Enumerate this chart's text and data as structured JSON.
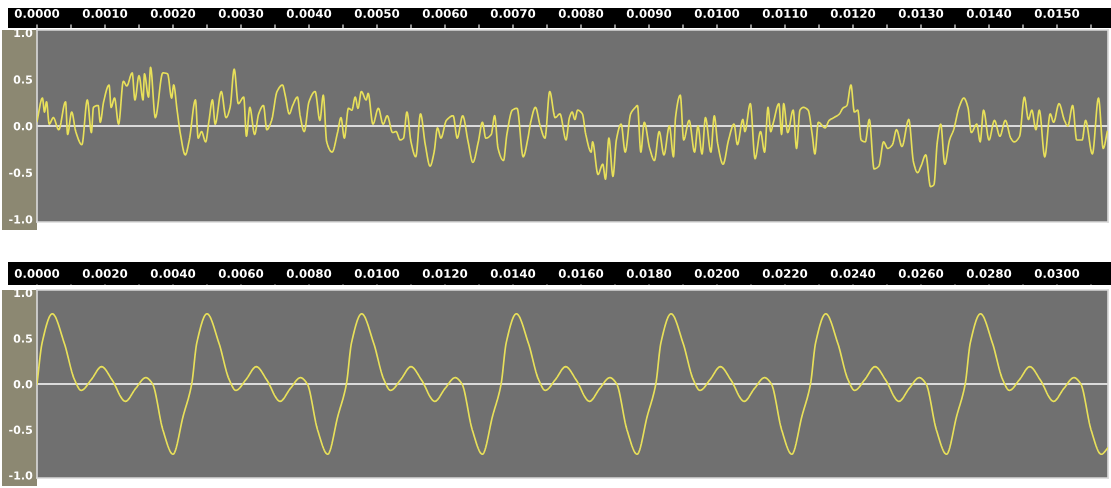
{
  "chart_data": [
    {
      "type": "line",
      "xlim": [
        0,
        0.01575
      ],
      "ylim": [
        -1.03,
        1.03
      ],
      "xticks": [
        {
          "value": 0,
          "label": "0.0000"
        },
        {
          "value": 0.0005,
          "label": null
        },
        {
          "value": 0.001,
          "label": "0.0010"
        },
        {
          "value": 0.0015,
          "label": null
        },
        {
          "value": 0.002,
          "label": "0.0020"
        },
        {
          "value": 0.0025,
          "label": null
        },
        {
          "value": 0.003,
          "label": "0.0030"
        },
        {
          "value": 0.0035,
          "label": null
        },
        {
          "value": 0.004,
          "label": "0.0040"
        },
        {
          "value": 0.0045,
          "label": null
        },
        {
          "value": 0.005,
          "label": "0.0050"
        },
        {
          "value": 0.0055,
          "label": null
        },
        {
          "value": 0.006,
          "label": "0.0060"
        },
        {
          "value": 0.0065,
          "label": null
        },
        {
          "value": 0.007,
          "label": "0.0070"
        },
        {
          "value": 0.0075,
          "label": null
        },
        {
          "value": 0.008,
          "label": "0.0080"
        },
        {
          "value": 0.0085,
          "label": null
        },
        {
          "value": 0.009,
          "label": "0.0090"
        },
        {
          "value": 0.0095,
          "label": null
        },
        {
          "value": 0.01,
          "label": "0.0100"
        },
        {
          "value": 0.0105,
          "label": null
        },
        {
          "value": 0.011,
          "label": "0.0110"
        },
        {
          "value": 0.0115,
          "label": null
        },
        {
          "value": 0.012,
          "label": "0.0120"
        },
        {
          "value": 0.0125,
          "label": null
        },
        {
          "value": 0.013,
          "label": "0.0130"
        },
        {
          "value": 0.0135,
          "label": null
        },
        {
          "value": 0.014,
          "label": "0.0140"
        },
        {
          "value": 0.0145,
          "label": null
        },
        {
          "value": 0.015,
          "label": "0.0150"
        },
        {
          "value": 0.0155,
          "label": null
        }
      ],
      "yticks": [
        {
          "value": 1.0,
          "label": "1.0"
        },
        {
          "value": 0.5,
          "label": "0.5"
        },
        {
          "value": 0,
          "label": "0.0"
        },
        {
          "value": -0.5,
          "label": "-0.5"
        },
        {
          "value": -1.0,
          "label": "-1.0"
        }
      ],
      "ref_lines": [
        {
          "axis": "y",
          "value": 0,
          "color": "#ffffff"
        }
      ],
      "series": [
        {
          "color": "#e8e05a",
          "x": [
            0,
            8e-05,
            0.00011,
            0.00014,
            0.00018,
            0.00024,
            0.00032,
            0.00042,
            0.00045,
            0.00051,
            0.00057,
            0.00066,
            0.00074,
            0.0008,
            0.00083,
            0.0009,
            0.00093,
            0.00098,
            0.00106,
            0.00109,
            0.00114,
            0.0012,
            0.00127,
            0.00132,
            0.0014,
            0.00144,
            0.0015,
            0.00156,
            0.00158,
            0.00164,
            0.00167,
            0.00174,
            0.00185,
            0.00192,
            0.00198,
            0.00201,
            0.00206,
            0.00211,
            0.00218,
            0.00224,
            0.00233,
            0.00237,
            0.00242,
            0.00248,
            0.00253,
            0.00258,
            0.00262,
            0.00271,
            0.00278,
            0.00284,
            0.0029,
            0.00296,
            0.00304,
            0.00308,
            0.00313,
            0.0032,
            0.00326,
            0.00333,
            0.00338,
            0.00345,
            0.00353,
            0.00361,
            0.00365,
            0.00371,
            0.00376,
            0.00383,
            0.00387,
            0.00393,
            0.004,
            0.00409,
            0.00416,
            0.00421,
            0.00426,
            0.00434,
            0.00442,
            0.00447,
            0.00452,
            0.00458,
            0.00463,
            0.00468,
            0.00472,
            0.00477,
            0.00484,
            0.00487,
            0.00494,
            0.00502,
            0.00509,
            0.00515,
            0.00523,
            0.00528,
            0.00534,
            0.00539,
            0.00544,
            0.0055,
            0.00557,
            0.00564,
            0.00571,
            0.00578,
            0.00584,
            0.00589,
            0.00594,
            0.00602,
            0.00612,
            0.00618,
            0.00626,
            0.00634,
            0.00641,
            0.00649,
            0.00655,
            0.0066,
            0.00668,
            0.00673,
            0.00678,
            0.00686,
            0.00691,
            0.00699,
            0.00706,
            0.00715,
            0.00722,
            0.00726,
            0.00733,
            0.0074,
            0.00747,
            0.00754,
            0.00762,
            0.00769,
            0.00778,
            0.00783,
            0.00787,
            0.00791,
            0.00795,
            0.00802,
            0.00807,
            0.00815,
            0.00817,
            0.00825,
            0.00832,
            0.00836,
            0.00841,
            0.00847,
            0.00852,
            0.00859,
            0.00865,
            0.00873,
            0.0088,
            0.00883,
            0.00888,
            0.00893,
            0.00901,
            0.00908,
            0.00915,
            0.00922,
            0.0093,
            0.00936,
            0.00939,
            0.00946,
            0.00951,
            0.00959,
            0.00967,
            0.00972,
            0.00978,
            0.00983,
            0.00991,
            0.00996,
            0.01001,
            0.01009,
            0.01017,
            0.01025,
            0.0103,
            0.01038,
            0.01041,
            0.01049,
            0.01056,
            0.01064,
            0.0107,
            0.01075,
            0.01079,
            0.01083,
            0.01091,
            0.01095,
            0.01098,
            0.01104,
            0.01112,
            0.01117,
            0.01122,
            0.01127,
            0.01134,
            0.0114,
            0.01144,
            0.01149,
            0.01159,
            0.01165,
            0.01172,
            0.0118,
            0.01185,
            0.01191,
            0.01197,
            0.01202,
            0.01207,
            0.01212,
            0.01218,
            0.01224,
            0.01231,
            0.01238,
            0.01245,
            0.01251,
            0.01258,
            0.01264,
            0.01272,
            0.01282,
            0.01289,
            0.01295,
            0.013,
            0.01307,
            0.01314,
            0.01319,
            0.01324,
            0.01329,
            0.01335,
            0.01342,
            0.01348,
            0.01356,
            0.01363,
            0.01369,
            0.01374,
            0.01382,
            0.01387,
            0.01392,
            0.014,
            0.01408,
            0.01416,
            0.01424,
            0.01432,
            0.01437,
            0.01445,
            0.01452,
            0.01458,
            0.01463,
            0.01469,
            0.01474,
            0.01482,
            0.0149,
            0.01495,
            0.01503,
            0.01511,
            0.01516,
            0.01523,
            0.01529,
            0.01537,
            0.01542,
            0.01552,
            0.01561,
            0.01568,
            0.01574
          ],
          "values": [
            0.05,
            0.3,
            0.15,
            0.26,
            0.02,
            0.09,
            -0.04,
            0.26,
            -0.09,
            0.15,
            -0.06,
            -0.2,
            0.28,
            -0.07,
            0.2,
            0.22,
            0.04,
            0.26,
            0.44,
            0.2,
            0.3,
            0.02,
            0.48,
            0.43,
            0.57,
            0.28,
            0.54,
            0.28,
            0.56,
            0.31,
            0.63,
            0.09,
            0.57,
            0.56,
            0.3,
            0.44,
            0.17,
            -0.09,
            -0.31,
            -0.15,
            0.28,
            -0.13,
            -0.06,
            -0.17,
            0.06,
            0.28,
            0.02,
            0.37,
            0.09,
            0.2,
            0.61,
            0.24,
            0.31,
            -0.11,
            0.2,
            -0.09,
            0.13,
            0.22,
            -0.04,
            0.06,
            0.37,
            0.44,
            0.33,
            0.13,
            0.22,
            0.31,
            0.11,
            -0.06,
            0.26,
            0.37,
            0.06,
            0.33,
            -0.17,
            -0.28,
            -0.07,
            0.09,
            -0.13,
            0.19,
            0.17,
            0.31,
            0.19,
            0.37,
            0.28,
            0.35,
            0.02,
            0.19,
            0.02,
            0.11,
            -0.07,
            -0.06,
            -0.15,
            -0.13,
            0.15,
            -0.17,
            -0.33,
            0.13,
            -0.2,
            -0.43,
            -0.28,
            -0.02,
            -0.13,
            0.06,
            0.11,
            -0.13,
            0.11,
            -0.17,
            -0.39,
            -0.17,
            0.04,
            -0.13,
            -0.09,
            0.11,
            -0.24,
            -0.37,
            -0.09,
            0.17,
            0.19,
            -0.33,
            -0.13,
            0.04,
            0.2,
            0.0,
            -0.13,
            0.37,
            0.09,
            0.13,
            -0.15,
            0.09,
            0.15,
            0.07,
            0.17,
            0.13,
            -0.09,
            -0.28,
            -0.17,
            -0.52,
            -0.41,
            -0.57,
            -0.13,
            -0.54,
            -0.15,
            0.02,
            -0.28,
            0.13,
            0.2,
            0.22,
            -0.28,
            0.04,
            -0.24,
            -0.37,
            -0.06,
            -0.31,
            0.0,
            -0.33,
            0.09,
            0.33,
            -0.15,
            0.06,
            -0.28,
            0.0,
            -0.3,
            0.09,
            -0.28,
            0.11,
            -0.19,
            -0.41,
            -0.15,
            0.02,
            -0.2,
            0.07,
            -0.06,
            0.24,
            -0.35,
            -0.06,
            -0.28,
            0.2,
            -0.06,
            0.04,
            0.24,
            -0.09,
            0.24,
            -0.07,
            0.17,
            -0.24,
            0.17,
            0.2,
            0.17,
            -0.09,
            -0.3,
            0.04,
            -0.02,
            0.06,
            0.09,
            0.13,
            0.19,
            0.22,
            0.44,
            0.15,
            0.17,
            -0.15,
            -0.17,
            0.07,
            -0.46,
            -0.43,
            -0.17,
            -0.24,
            -0.2,
            -0.04,
            -0.22,
            0.07,
            -0.39,
            -0.5,
            -0.43,
            -0.31,
            -0.65,
            -0.63,
            -0.17,
            0.02,
            -0.41,
            -0.15,
            -0.04,
            0.2,
            0.3,
            0.2,
            -0.07,
            0.02,
            -0.17,
            0.17,
            -0.15,
            0.06,
            -0.11,
            0.06,
            -0.13,
            -0.17,
            -0.11,
            0.31,
            0.07,
            0.17,
            -0.04,
            0.17,
            -0.33,
            0.13,
            0.04,
            0.24,
            0.06,
            0.0,
            0.22,
            -0.15,
            -0.15,
            0.06,
            -0.3,
            0.3,
            -0.24,
            -0.06
          ]
        }
      ]
    },
    {
      "type": "line",
      "xlim": [
        0,
        0.0315
      ],
      "ylim": [
        -1.03,
        1.03
      ],
      "xticks": [
        {
          "value": 0,
          "label": "0.0000"
        },
        {
          "value": 0.001,
          "label": null
        },
        {
          "value": 0.002,
          "label": "0.0020"
        },
        {
          "value": 0.003,
          "label": null
        },
        {
          "value": 0.004,
          "label": "0.0040"
        },
        {
          "value": 0.005,
          "label": null
        },
        {
          "value": 0.006,
          "label": "0.0060"
        },
        {
          "value": 0.007,
          "label": null
        },
        {
          "value": 0.008,
          "label": "0.0080"
        },
        {
          "value": 0.009,
          "label": null
        },
        {
          "value": 0.01,
          "label": "0.0100"
        },
        {
          "value": 0.011,
          "label": null
        },
        {
          "value": 0.012,
          "label": "0.0120"
        },
        {
          "value": 0.013,
          "label": null
        },
        {
          "value": 0.014,
          "label": "0.0140"
        },
        {
          "value": 0.015,
          "label": null
        },
        {
          "value": 0.016,
          "label": "0.0160"
        },
        {
          "value": 0.017,
          "label": null
        },
        {
          "value": 0.018,
          "label": "0.0180"
        },
        {
          "value": 0.019,
          "label": null
        },
        {
          "value": 0.02,
          "label": "0.0200"
        },
        {
          "value": 0.021,
          "label": null
        },
        {
          "value": 0.022,
          "label": "0.0220"
        },
        {
          "value": 0.023,
          "label": null
        },
        {
          "value": 0.024,
          "label": "0.0240"
        },
        {
          "value": 0.025,
          "label": null
        },
        {
          "value": 0.026,
          "label": "0.0260"
        },
        {
          "value": 0.027,
          "label": null
        },
        {
          "value": 0.028,
          "label": "0.0280"
        },
        {
          "value": 0.029,
          "label": null
        },
        {
          "value": 0.03,
          "label": "0.0300"
        },
        {
          "value": 0.031,
          "label": null
        }
      ],
      "yticks": [
        {
          "value": 1.0,
          "label": "1.0"
        },
        {
          "value": 0.5,
          "label": "0.5"
        },
        {
          "value": 0,
          "label": "0.0"
        },
        {
          "value": -0.5,
          "label": "-0.5"
        },
        {
          "value": -1.0,
          "label": "-1.0"
        }
      ],
      "ref_lines": [
        {
          "axis": "y",
          "value": 0,
          "color": "#ffffff"
        }
      ],
      "series": [
        {
          "color": "#e8e05a",
          "x": [
            0,
            0.00015,
            0.00045,
            0.0008,
            0.0011,
            0.0013,
            0.0016,
            0.0019,
            0.0022,
            0.0026,
            0.0029,
            0.0032,
            0.0034,
            0.0037,
            0.004,
            0.0043,
            0.00455,
            0.0047,
            0.005,
            0.00535,
            0.00565,
            0.00585,
            0.00615,
            0.00645,
            0.00675,
            0.00715,
            0.00745,
            0.00775,
            0.00795,
            0.00825,
            0.00855,
            0.00885,
            0.0091,
            0.00925,
            0.00955,
            0.0099,
            0.0102,
            0.0104,
            0.0107,
            0.011,
            0.0113,
            0.0117,
            0.012,
            0.0123,
            0.0125,
            0.0128,
            0.0131,
            0.0134,
            0.01365,
            0.0138,
            0.0141,
            0.01445,
            0.01475,
            0.01495,
            0.01525,
            0.01555,
            0.01585,
            0.01625,
            0.01655,
            0.01685,
            0.01705,
            0.01735,
            0.01765,
            0.01795,
            0.0182,
            0.01835,
            0.01865,
            0.019,
            0.0193,
            0.0195,
            0.0198,
            0.0201,
            0.0204,
            0.0208,
            0.0211,
            0.0214,
            0.0216,
            0.0219,
            0.0222,
            0.0225,
            0.02275,
            0.0229,
            0.0232,
            0.02355,
            0.02385,
            0.02405,
            0.02435,
            0.02465,
            0.02495,
            0.02535,
            0.02565,
            0.02595,
            0.02615,
            0.02645,
            0.02675,
            0.02705,
            0.0273,
            0.02745,
            0.02775,
            0.0281,
            0.0284,
            0.0286,
            0.0289,
            0.0292,
            0.0295,
            0.0299,
            0.0302,
            0.0305,
            0.0307,
            0.031,
            0.0313,
            0.0315
          ],
          "values": [
            0,
            0.45,
            0.77,
            0.45,
            0.05,
            -0.07,
            0.05,
            0.19,
            0.05,
            -0.19,
            -0.05,
            0.07,
            0.0,
            -0.5,
            -0.77,
            -0.35,
            0,
            0.45,
            0.77,
            0.45,
            0.05,
            -0.07,
            0.05,
            0.19,
            0.05,
            -0.19,
            -0.05,
            0.07,
            0.0,
            -0.5,
            -0.77,
            -0.35,
            0,
            0.45,
            0.77,
            0.45,
            0.05,
            -0.07,
            0.05,
            0.19,
            0.05,
            -0.19,
            -0.05,
            0.07,
            0.0,
            -0.5,
            -0.77,
            -0.35,
            0,
            0.45,
            0.77,
            0.45,
            0.05,
            -0.07,
            0.05,
            0.19,
            0.05,
            -0.19,
            -0.05,
            0.07,
            0.0,
            -0.5,
            -0.77,
            -0.35,
            0,
            0.45,
            0.77,
            0.45,
            0.05,
            -0.07,
            0.05,
            0.19,
            0.05,
            -0.19,
            -0.05,
            0.07,
            0.0,
            -0.5,
            -0.77,
            -0.35,
            0,
            0.45,
            0.77,
            0.45,
            0.05,
            -0.07,
            0.05,
            0.19,
            0.05,
            -0.19,
            -0.05,
            0.07,
            0.0,
            -0.5,
            -0.77,
            -0.35,
            0,
            0.45,
            0.77,
            0.45,
            0.05,
            -0.07,
            0.05,
            0.19,
            0.05,
            -0.19,
            -0.05,
            0.07,
            0.0,
            -0.5,
            -0.77,
            -0.7
          ]
        }
      ]
    }
  ]
}
